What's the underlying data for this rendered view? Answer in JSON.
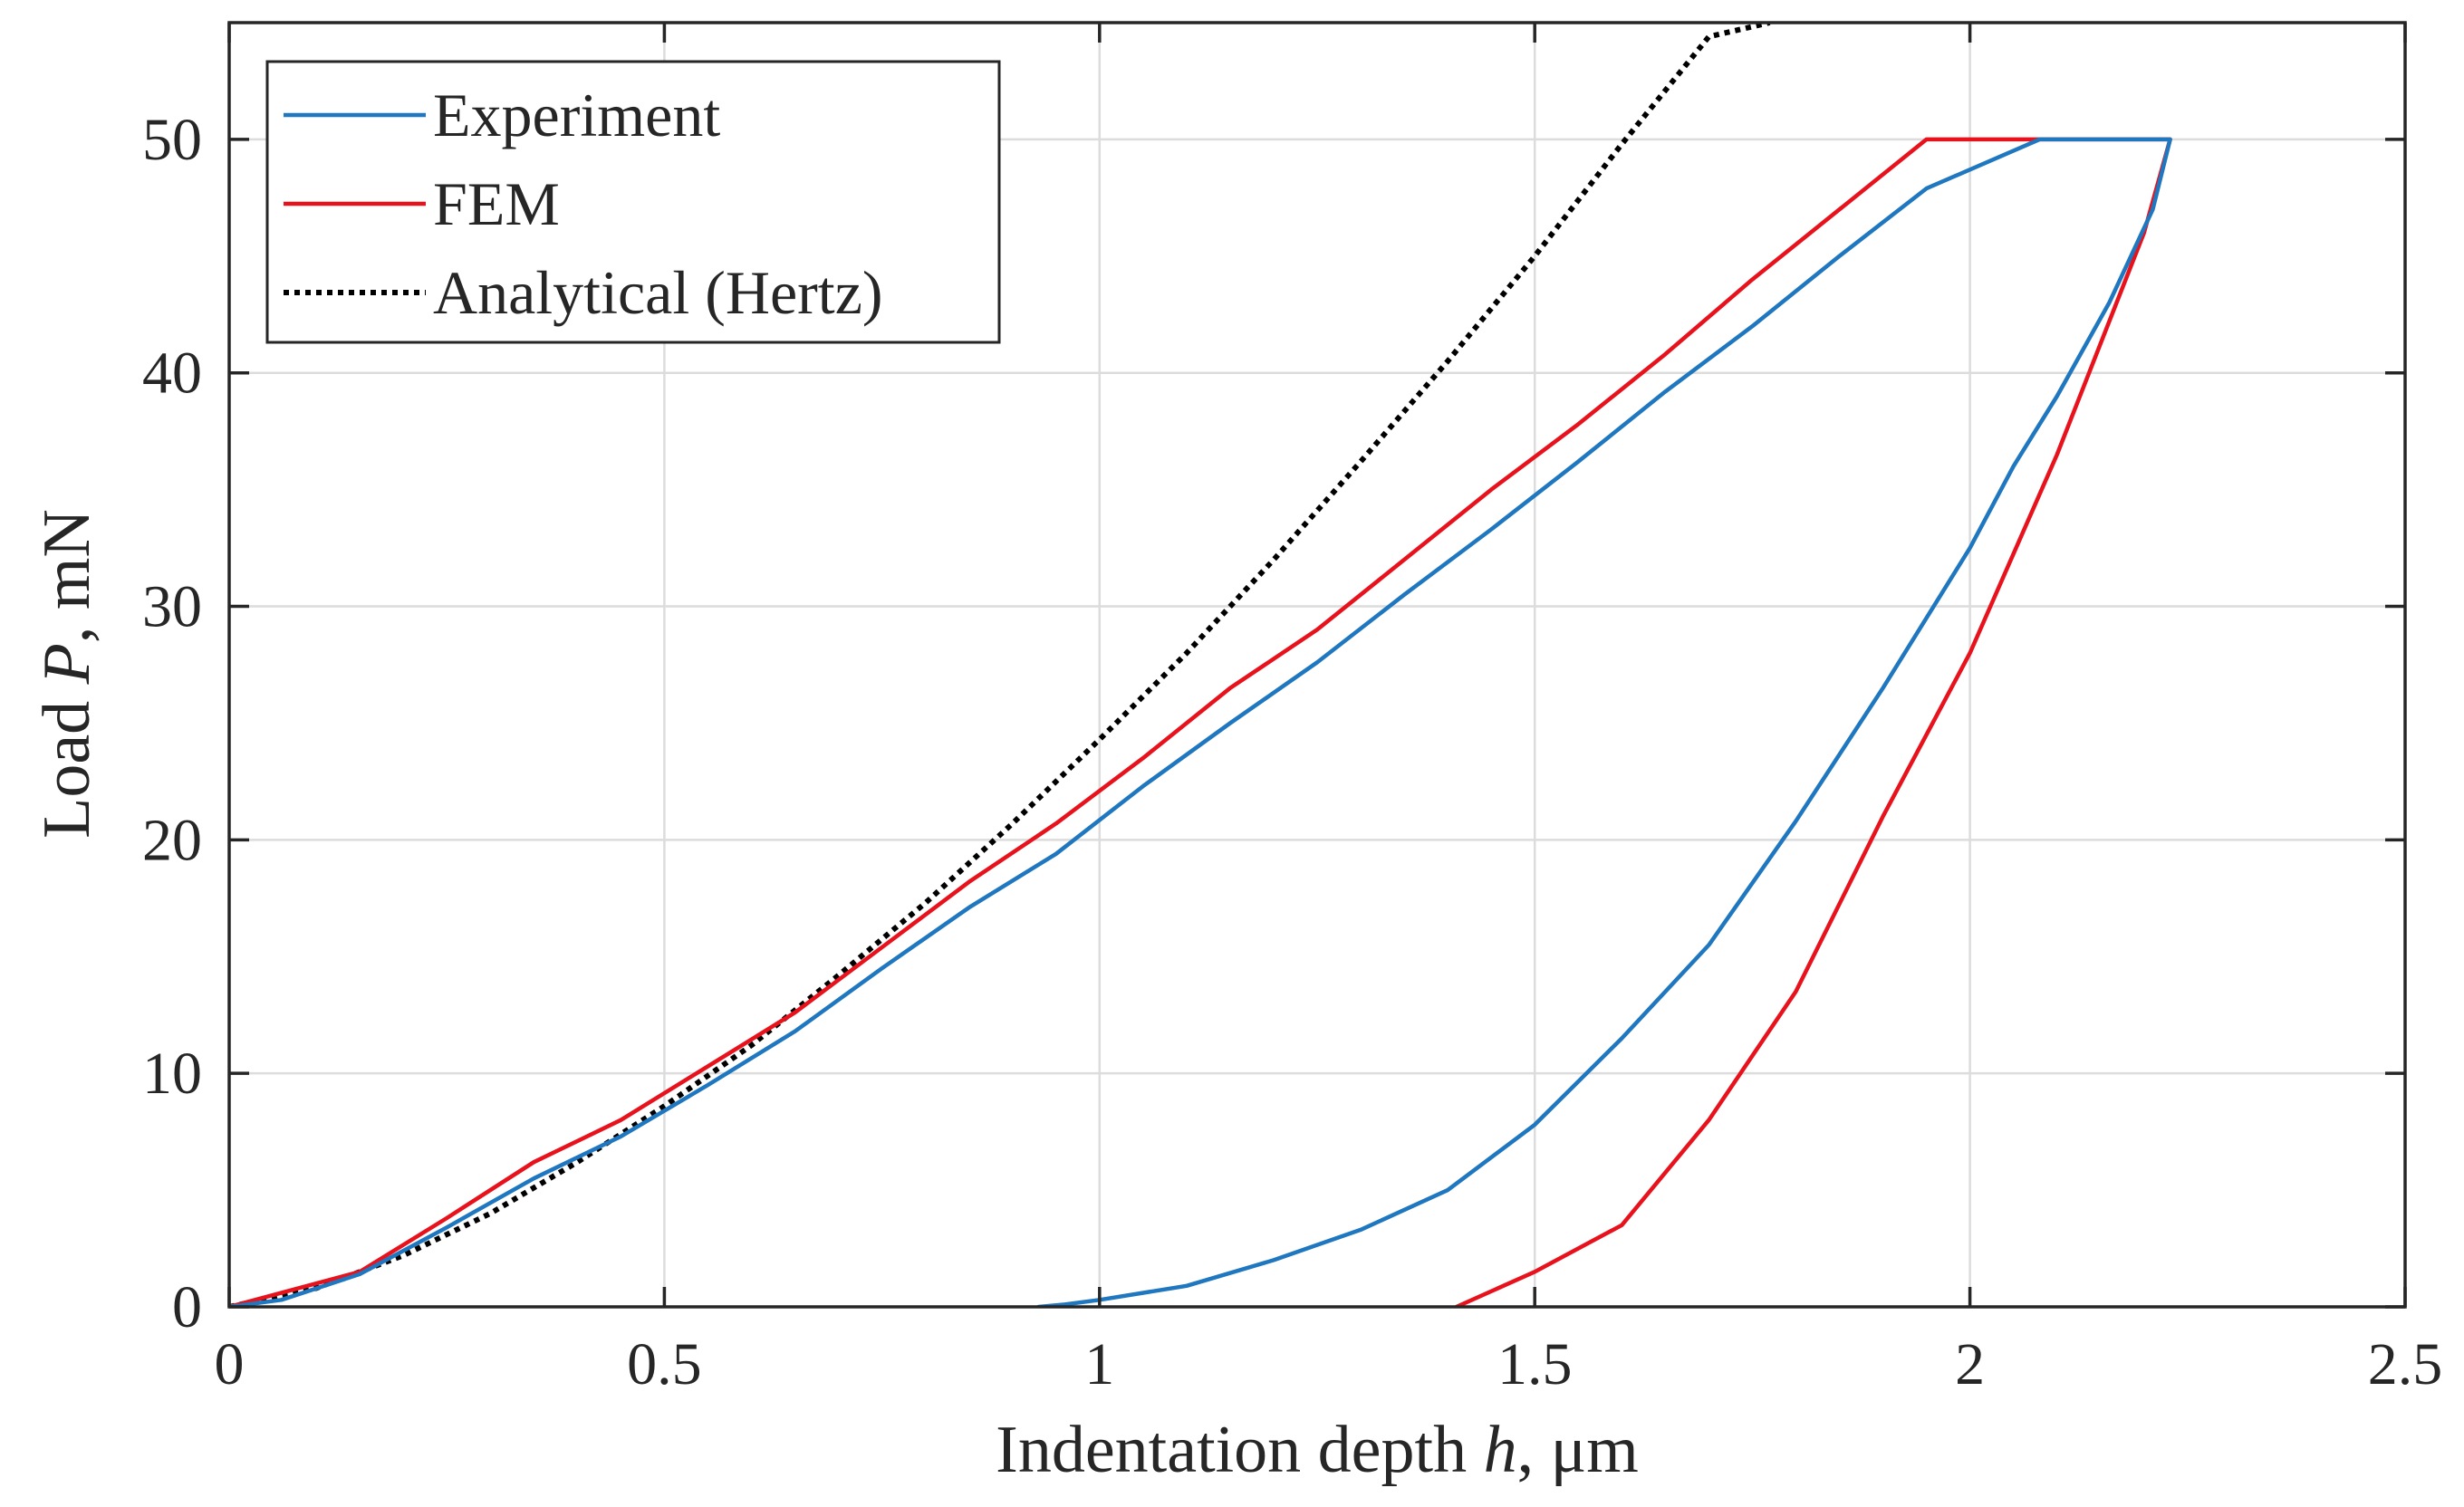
{
  "chart_data": {
    "type": "line",
    "xlabel_parts": [
      "Indentation depth ",
      "h",
      ", μm"
    ],
    "ylabel_parts": [
      "Load ",
      "P",
      ", mN"
    ],
    "xlim": [
      0,
      2.5
    ],
    "ylim": [
      0,
      55
    ],
    "xticks": [
      0,
      0.5,
      1,
      1.5,
      2,
      2.5
    ],
    "xtick_labels": [
      "0",
      "0.5",
      "1",
      "1.5",
      "2",
      "2.5"
    ],
    "yticks": [
      0,
      10,
      20,
      30,
      40,
      50
    ],
    "ytick_labels": [
      "0",
      "10",
      "20",
      "30",
      "40",
      "50"
    ],
    "grid": true,
    "legend_position": "top-left",
    "series": [
      {
        "name": "Experiment",
        "color": "#1f77c0",
        "style": "solid",
        "x": [
          0.0,
          0.06,
          0.15,
          0.25,
          0.35,
          0.45,
          0.55,
          0.65,
          0.75,
          0.85,
          0.95,
          1.05,
          1.15,
          1.25,
          1.35,
          1.45,
          1.55,
          1.65,
          1.75,
          1.85,
          1.95,
          2.08,
          2.23,
          2.21,
          2.16,
          2.1,
          2.05,
          2.0,
          1.9,
          1.8,
          1.7,
          1.6,
          1.5,
          1.4,
          1.3,
          1.2,
          1.1,
          1.0,
          0.96,
          0.93
        ],
        "y": [
          0.0,
          0.3,
          1.4,
          3.4,
          5.5,
          7.3,
          9.5,
          11.8,
          14.5,
          17.1,
          19.4,
          22.3,
          25.0,
          27.6,
          30.5,
          33.3,
          36.2,
          39.2,
          42.0,
          45.0,
          47.9,
          50.0,
          50.0,
          47.0,
          43.0,
          39.0,
          36.0,
          32.5,
          26.5,
          20.8,
          15.5,
          11.5,
          7.8,
          5.0,
          3.3,
          2.0,
          0.9,
          0.3,
          0.1,
          0.0
        ]
      },
      {
        "name": "FEM",
        "color": "#e8121d",
        "style": "solid",
        "x": [
          0.0,
          0.15,
          0.25,
          0.35,
          0.45,
          0.55,
          0.65,
          0.75,
          0.85,
          0.95,
          1.05,
          1.15,
          1.25,
          1.35,
          1.45,
          1.55,
          1.65,
          1.75,
          1.85,
          1.95,
          2.23,
          2.2,
          2.1,
          2.0,
          1.9,
          1.8,
          1.7,
          1.6,
          1.5,
          1.47,
          1.41
        ],
        "y": [
          0.0,
          1.5,
          3.8,
          6.2,
          8.0,
          10.3,
          12.6,
          15.4,
          18.2,
          20.7,
          23.5,
          26.5,
          29.0,
          32.0,
          35.0,
          37.8,
          40.8,
          44.0,
          47.0,
          50.0,
          50.0,
          46.0,
          36.5,
          28.0,
          21.0,
          13.5,
          8.0,
          3.5,
          1.5,
          1.0,
          0.0
        ]
      },
      {
        "name": "Analytical (Hertz)",
        "color": "#000000",
        "style": "dotted",
        "x": [
          0.0,
          0.1,
          0.2,
          0.3,
          0.4,
          0.5,
          0.6,
          0.7,
          0.8,
          0.9,
          1.0,
          1.1,
          1.2,
          1.3,
          1.4,
          1.5,
          1.6,
          1.7,
          1.77
        ],
        "y": [
          0.0,
          0.8,
          2.2,
          4.0,
          6.2,
          8.6,
          11.2,
          14.2,
          17.3,
          20.7,
          24.3,
          28.0,
          32.0,
          36.2,
          40.5,
          45.0,
          49.8,
          54.4,
          55.0
        ]
      }
    ]
  }
}
